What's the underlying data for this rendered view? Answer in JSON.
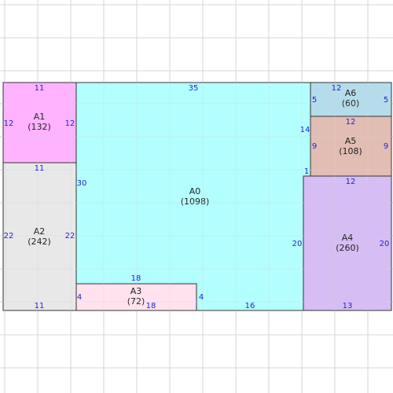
{
  "colors": {
    "grid": "#d4d4d4",
    "outline": "#333333",
    "dimension_text": "#2323d6",
    "A0": "#b3ffff",
    "A1": "#ffb3ff",
    "A2": "#e8e8e8",
    "A3": "#ffe2ee",
    "A4": "#d6bdf3",
    "A5": "#e2bdb3",
    "A6": "#b5dcea"
  },
  "regions": [
    {
      "id": "A0",
      "name": "A0",
      "area": "(1098)"
    },
    {
      "id": "A1",
      "name": "A1",
      "area": "(132)"
    },
    {
      "id": "A2",
      "name": "A2",
      "area": "(242)"
    },
    {
      "id": "A3",
      "name": "A3",
      "area": "(72)"
    },
    {
      "id": "A4",
      "name": "A4",
      "area": "(260)"
    },
    {
      "id": "A5",
      "name": "A5",
      "area": "(108)"
    },
    {
      "id": "A6",
      "name": "A6",
      "area": "(60)"
    }
  ],
  "dimensions": {
    "A0_top": "35",
    "A0_left": "30",
    "A0_right_upper": "14",
    "A0_right_step": "1",
    "A0_right_lower": "20",
    "A0_bottom": "16",
    "A1_top": "11",
    "A1_left": "12",
    "A1_right": "12",
    "A1_bottom": "11",
    "A2_left": "22",
    "A2_right": "22",
    "A2_bottom": "11",
    "A3_top": "18",
    "A3_left": "4",
    "A3_right": "4",
    "A3_bottom": "18",
    "A4_top": "12",
    "A4_right": "20",
    "A4_bottom": "13",
    "A5_top": "12",
    "A5_left": "9",
    "A5_right": "9",
    "A6_top": "12",
    "A6_left": "5",
    "A6_right": "5"
  }
}
